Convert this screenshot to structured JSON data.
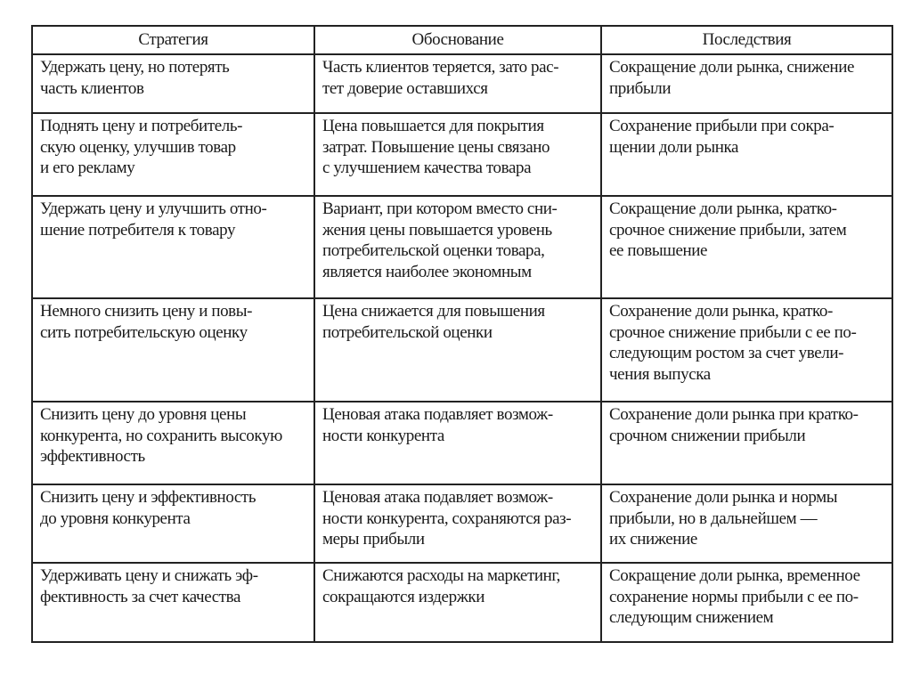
{
  "headers": [
    "Стратегия",
    "Обоснование",
    "Последствия"
  ],
  "rows": [
    {
      "strategy": [
        "Удержать цену, но потерять",
        "часть клиентов"
      ],
      "rationale": [
        "Часть клиентов теряется, зато рас-",
        "тет доверие оставшихся"
      ],
      "consequences": [
        "Сокращение доли рынка, снижение",
        "прибыли"
      ]
    },
    {
      "strategy": [
        "Поднять цену и потребитель-",
        "скую оценку, улучшив товар",
        "и его рекламу"
      ],
      "rationale": [
        "Цена повышается для покрытия",
        "затрат. Повышение цены связано",
        "с улучшением качества товара"
      ],
      "consequences": [
        "Сохранение прибыли при сокра-",
        "щении доли рынка"
      ]
    },
    {
      "strategy": [
        "Удержать цену и улучшить отно-",
        "шение потребителя к товару"
      ],
      "rationale": [
        "Вариант, при котором вместо сни-",
        "жения цены повышается уровень",
        "потребительской оценки товара,",
        "является наиболее экономным"
      ],
      "consequences": [
        "Сокращение доли рынка, кратко-",
        "срочное снижение прибыли, затем",
        "ее повышение"
      ]
    },
    {
      "strategy": [
        "Немного снизить цену и повы-",
        "сить потребительскую оценку"
      ],
      "rationale": [
        "Цена снижается для повышения",
        "потребительской оценки"
      ],
      "consequences": [
        "Сохранение доли рынка, кратко-",
        "срочное снижение прибыли с ее по-",
        "следующим ростом за счет увели-",
        "чения выпуска"
      ]
    },
    {
      "strategy": [
        "Снизить цену до уровня цены",
        "конкурента, но сохранить высокую",
        "эффективность"
      ],
      "rationale": [
        "Ценовая атака подавляет возмож-",
        "ности конкурента"
      ],
      "consequences": [
        "Сохранение доли рынка при кратко-",
        "срочном снижении прибыли"
      ]
    },
    {
      "strategy": [
        "Снизить цену и эффективность",
        "до уровня конкурента"
      ],
      "rationale": [
        "Ценовая атака подавляет возмож-",
        "ности конкурента, сохраняются раз-",
        "меры прибыли"
      ],
      "consequences": [
        "Сохранение доли рынка и нормы",
        "прибыли, но в дальнейшем —",
        "их снижение"
      ]
    },
    {
      "strategy": [
        "Удерживать цену и снижать эф-",
        "фективность за счет качества"
      ],
      "rationale": [
        "Снижаются расходы на маркетинг,",
        "сокращаются издержки"
      ],
      "consequences": [
        "Сокращение доли рынка, временное",
        "сохранение нормы прибыли с ее по-",
        "следующим снижением"
      ]
    }
  ]
}
